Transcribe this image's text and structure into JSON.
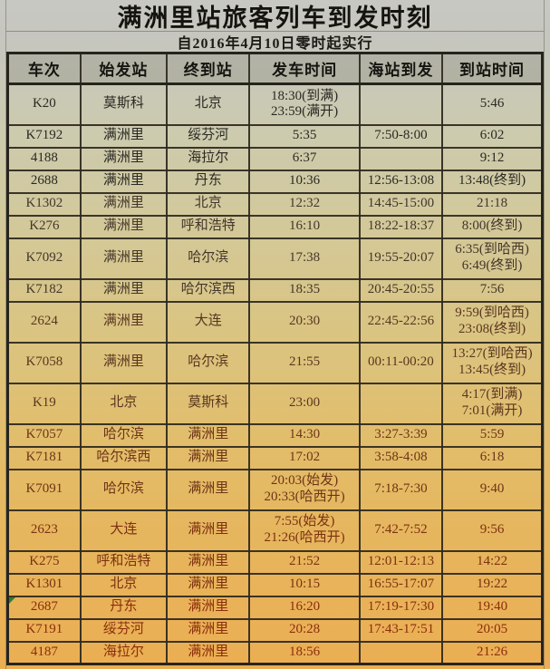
{
  "title": "满洲里站旅客列车到发时刻",
  "subtitle": "自2016年4月10日零时起实行",
  "colors": {
    "photo_top_tint": "#c7c8c2",
    "photo_bottom_tint": "#ebae52",
    "grid_border": "#26241d",
    "text_top": "#2a2922",
    "text_bottom": "#8b2d0c",
    "corner_marker_green": "#2e7d32"
  },
  "table": {
    "headers": [
      "车次",
      "始发站",
      "终到站",
      "发车时间",
      "海站到发",
      "到站时间"
    ],
    "marker_train": "2687",
    "rows": [
      {
        "train": "K20",
        "origin": "莫斯科",
        "destination": "北京",
        "departure": "18:30(到满)\n23:59(满开)",
        "haizhan": "",
        "arrival": "5:46"
      },
      {
        "train": "K7192",
        "origin": "满洲里",
        "destination": "绥芬河",
        "departure": "5:35",
        "haizhan": "7:50-8:00",
        "arrival": "6:02"
      },
      {
        "train": "4188",
        "origin": "满洲里",
        "destination": "海拉尔",
        "departure": "6:37",
        "haizhan": "",
        "arrival": "9:12"
      },
      {
        "train": "2688",
        "origin": "满洲里",
        "destination": "丹东",
        "departure": "10:36",
        "haizhan": "12:56-13:08",
        "arrival": "13:48(终到)"
      },
      {
        "train": "K1302",
        "origin": "满洲里",
        "destination": "北京",
        "departure": "12:32",
        "haizhan": "14:45-15:00",
        "arrival": "21:18"
      },
      {
        "train": "K276",
        "origin": "满洲里",
        "destination": "呼和浩特",
        "departure": "16:10",
        "haizhan": "18:22-18:37",
        "arrival": "8:00(终到)"
      },
      {
        "train": "K7092",
        "origin": "满洲里",
        "destination": "哈尔滨",
        "departure": "17:38",
        "haizhan": "19:55-20:07",
        "arrival": "6:35(到哈西)\n6:49(终到)"
      },
      {
        "train": "K7182",
        "origin": "满洲里",
        "destination": "哈尔滨西",
        "departure": "18:35",
        "haizhan": "20:45-20:55",
        "arrival": "7:56"
      },
      {
        "train": "2624",
        "origin": "满洲里",
        "destination": "大连",
        "departure": "20:30",
        "haizhan": "22:45-22:56",
        "arrival": "9:59(到哈西)\n23:08(终到)"
      },
      {
        "train": "K7058",
        "origin": "满洲里",
        "destination": "哈尔滨",
        "departure": "21:55",
        "haizhan": "00:11-00:20",
        "arrival": "13:27(到哈西)\n13:45(终到)"
      },
      {
        "train": "K19",
        "origin": "北京",
        "destination": "莫斯科",
        "departure": "23:00",
        "haizhan": "",
        "arrival": "4:17(到满)\n7:01(满开)"
      },
      {
        "train": "K7057",
        "origin": "哈尔滨",
        "destination": "满洲里",
        "departure": "14:30",
        "haizhan": "3:27-3:39",
        "arrival": "5:59"
      },
      {
        "train": "K7181",
        "origin": "哈尔滨西",
        "destination": "满洲里",
        "departure": "17:02",
        "haizhan": "3:58-4:08",
        "arrival": "6:18"
      },
      {
        "train": "K7091",
        "origin": "哈尔滨",
        "destination": "满洲里",
        "departure": "20:03(始发)\n20:33(哈西开)",
        "haizhan": "7:18-7:30",
        "arrival": "9:40"
      },
      {
        "train": "2623",
        "origin": "大连",
        "destination": "满洲里",
        "departure": "7:55(始发)\n21:26(哈西开)",
        "haizhan": "7:42-7:52",
        "arrival": "9:56"
      },
      {
        "train": "K275",
        "origin": "呼和浩特",
        "destination": "满洲里",
        "departure": "21:52",
        "haizhan": "12:01-12:13",
        "arrival": "14:22"
      },
      {
        "train": "K1301",
        "origin": "北京",
        "destination": "满洲里",
        "departure": "10:15",
        "haizhan": "16:55-17:07",
        "arrival": "19:22"
      },
      {
        "train": "2687",
        "origin": "丹东",
        "destination": "满洲里",
        "departure": "16:20",
        "haizhan": "17:19-17:30",
        "arrival": "19:40"
      },
      {
        "train": "K7191",
        "origin": "绥芬河",
        "destination": "满洲里",
        "departure": "20:28",
        "haizhan": "17:43-17:51",
        "arrival": "20:05"
      },
      {
        "train": "4187",
        "origin": "海拉尔",
        "destination": "满洲里",
        "departure": "18:56",
        "haizhan": "",
        "arrival": "21:26"
      }
    ]
  }
}
